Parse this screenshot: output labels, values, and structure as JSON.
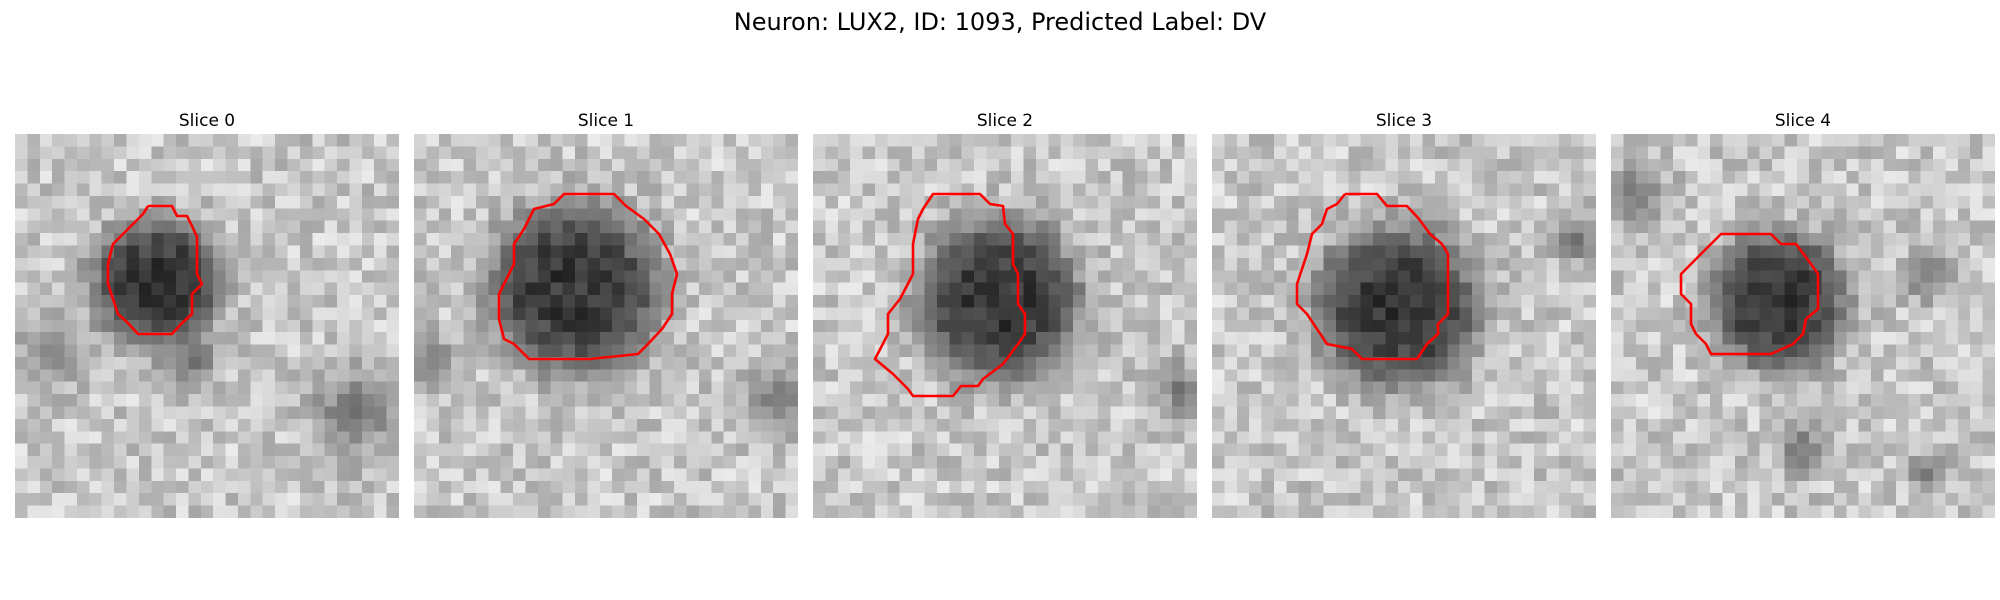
{
  "figure": {
    "title": "Neuron: LUX2, ID: 1093, Predicted Label: DV",
    "contour_color": "#ff0000",
    "colormap": "grayscale"
  },
  "slices": [
    {
      "label": "Slice 0"
    },
    {
      "label": "Slice 1"
    },
    {
      "label": "Slice 2"
    },
    {
      "label": "Slice 3"
    },
    {
      "label": "Slice 4"
    }
  ]
}
